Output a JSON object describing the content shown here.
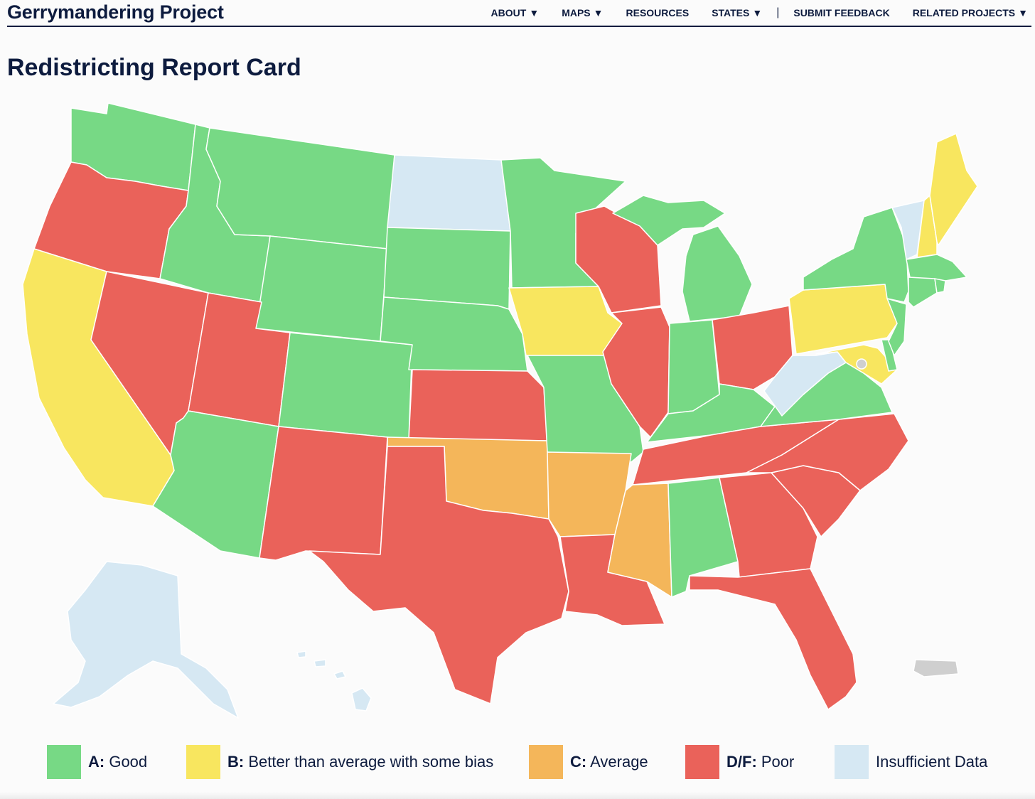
{
  "header": {
    "brand": "Gerrymandering Project",
    "nav": [
      {
        "label": "ABOUT",
        "caret": "▼"
      },
      {
        "label": "MAPS",
        "caret": "▼"
      },
      {
        "label": "RESOURCES",
        "caret": ""
      },
      {
        "label": "STATES",
        "caret": "▼"
      },
      {
        "label": "SUBMIT FEEDBACK",
        "caret": ""
      },
      {
        "label": "RELATED PROJECTS",
        "caret": "▼"
      }
    ],
    "separator": "|"
  },
  "page_title": "Redistricting Report Card",
  "colors": {
    "A": "#77d985",
    "B": "#f8e65f",
    "C": "#f4b65a",
    "DF": "#ea625a",
    "insufficient": "#d6e8f3",
    "territory": "#cfcfcf",
    "text": "#0d1b3e"
  },
  "legend": [
    {
      "key": "A",
      "grade": "A:",
      "label": " Good",
      "color": "#77d985"
    },
    {
      "key": "B",
      "grade": "B:",
      "label": " Better than average with some bias",
      "color": "#f8e65f"
    },
    {
      "key": "C",
      "grade": "C:",
      "label": " Average",
      "color": "#f4b65a"
    },
    {
      "key": "DF",
      "grade": "D/F:",
      "label": " Poor",
      "color": "#ea625a"
    },
    {
      "key": "insufficient",
      "grade": "",
      "label": "Insufficient Data",
      "color": "#d6e8f3"
    }
  ],
  "grades": {
    "Washington": "A",
    "Oregon": "DF",
    "California": "B",
    "Nevada": "DF",
    "Idaho": "A",
    "Montana": "A",
    "Wyoming": "A",
    "Utah": "DF",
    "Arizona": "A",
    "Colorado": "A",
    "New Mexico": "DF",
    "North Dakota": "insufficient",
    "South Dakota": "A",
    "Nebraska": "A",
    "Kansas": "DF",
    "Oklahoma": "C",
    "Texas": "DF",
    "Minnesota": "A",
    "Iowa": "B",
    "Missouri": "A",
    "Arkansas": "C",
    "Louisiana": "DF",
    "Wisconsin": "DF",
    "Illinois": "DF",
    "Michigan": "A",
    "Indiana": "A",
    "Ohio": "DF",
    "Kentucky": "A",
    "Tennessee": "DF",
    "Mississippi": "C",
    "Alabama": "A",
    "Georgia": "DF",
    "Florida": "DF",
    "South Carolina": "DF",
    "North Carolina": "DF",
    "Virginia": "A",
    "West Virginia": "insufficient",
    "Pennsylvania": "B",
    "New York": "A",
    "Vermont": "insufficient",
    "New Hampshire": "B",
    "Maine": "B",
    "Massachusetts": "A",
    "Connecticut": "A",
    "Rhode Island": "A",
    "New Jersey": "A",
    "Delaware": "A",
    "Maryland": "B",
    "District of Columbia": "territory",
    "Alaska": "insufficient",
    "Hawaii": "insufficient",
    "Puerto Rico": "territory"
  }
}
